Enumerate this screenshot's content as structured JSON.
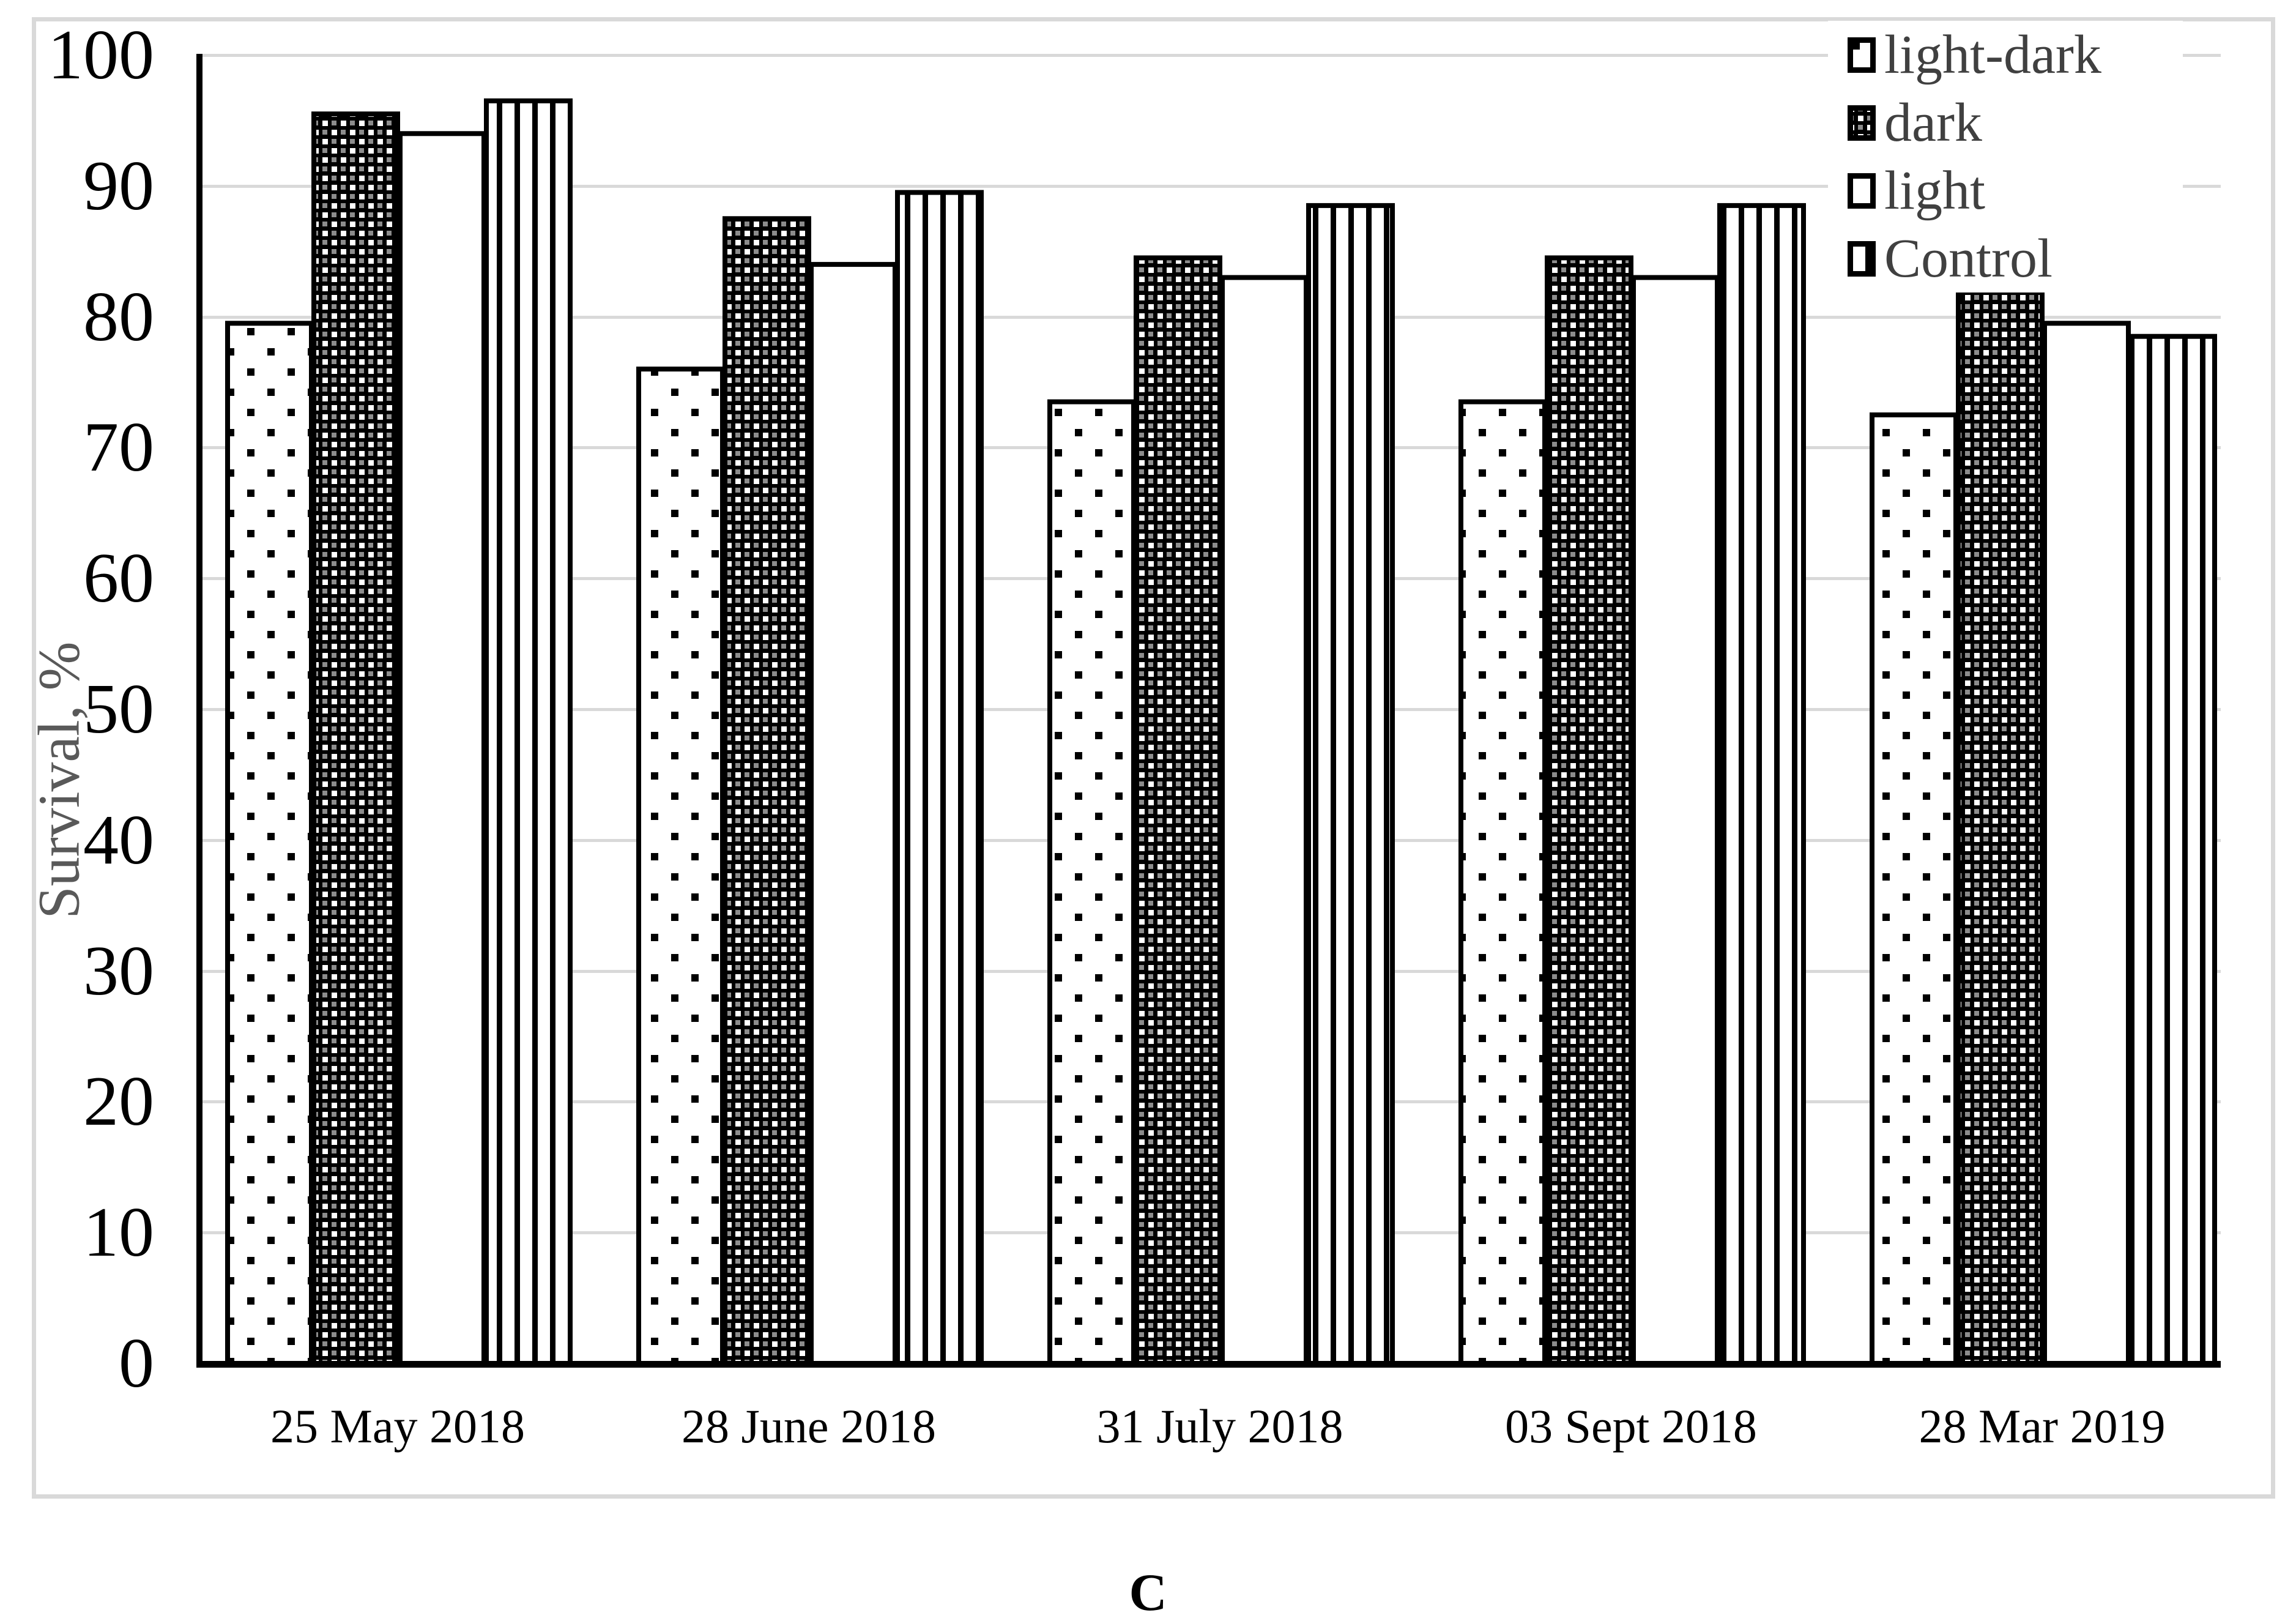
{
  "figure": {
    "caption": "C",
    "panel": "survival-bar-chart"
  },
  "chart_data": {
    "type": "bar",
    "title": "",
    "xlabel": "",
    "ylabel": "Survival, %",
    "ylim": [
      0,
      100
    ],
    "ytick_step": 10,
    "grid": true,
    "legend_position": "top-right",
    "categories": [
      "25 May 2018",
      "28 June 2018",
      "31 July 2018",
      "03 Sept 2018",
      "28 Mar 2019"
    ],
    "series": [
      {
        "name": "light-dark",
        "pattern": "polka-dots",
        "values": [
          79.5,
          76.0,
          73.5,
          73.5,
          72.5
        ]
      },
      {
        "name": "dark",
        "pattern": "dense-checker",
        "values": [
          95.5,
          87.5,
          84.5,
          84.5,
          82.0
        ]
      },
      {
        "name": "light",
        "pattern": "plain-white",
        "values": [
          94.0,
          84.0,
          83.0,
          83.0,
          79.5
        ]
      },
      {
        "name": "Control",
        "pattern": "vertical-stripes",
        "values": [
          96.5,
          89.5,
          88.5,
          88.5,
          78.5
        ]
      }
    ],
    "colors": {
      "gridline": "#d9d9d9",
      "figure_border": "#d9d9d9",
      "axis": "#000000",
      "tick_labels": "#000000",
      "axis_title": "#595959",
      "legend_text": "#404040",
      "bar_foreground": "#000000",
      "bar_background": "#ffffff"
    }
  }
}
